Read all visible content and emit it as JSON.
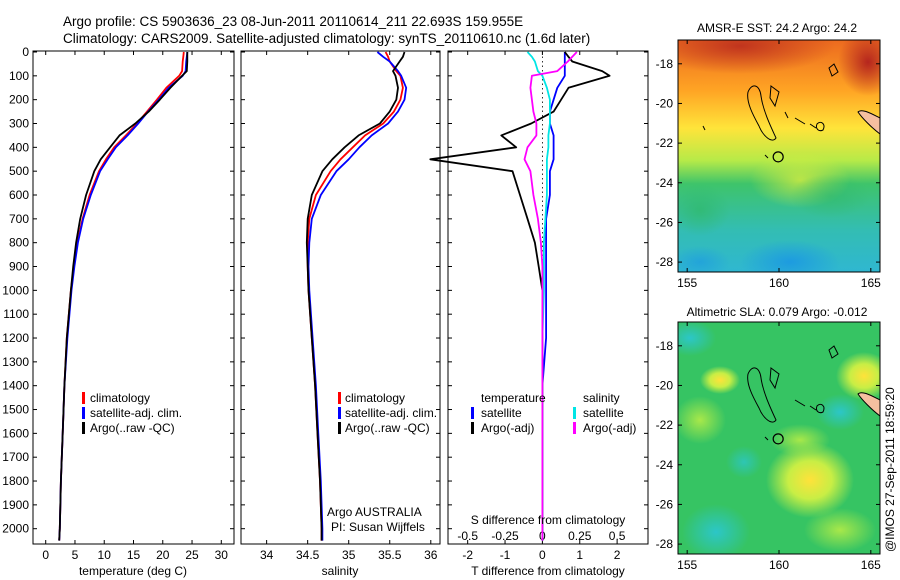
{
  "header": {
    "title_line1": "Argo profile: CS 5903636_23 08-Jun-2011 20110614_211 22.693S 159.955E",
    "title_line2": "Climatology: CARS2009. Satellite-adjusted climatology: synTS_20110610.nc (1.6d later)"
  },
  "footer": {
    "stamp": "@IMOS 27-Sep-2011 18:59:20"
  },
  "colors": {
    "red": "#ff0000",
    "blue": "#0000ff",
    "black": "#000000",
    "cyan": "#00e5e5",
    "magenta": "#ff00ff"
  },
  "chart_data": [
    {
      "id": "temperature",
      "type": "line",
      "xlabel": "temperature (deg C)",
      "xlim": [
        -2,
        32
      ],
      "xticks": [
        0,
        5,
        10,
        15,
        20,
        25,
        30
      ],
      "ylim": [
        0,
        2060
      ],
      "yticks": [
        0,
        100,
        200,
        300,
        400,
        500,
        600,
        700,
        800,
        900,
        1000,
        1100,
        1200,
        1300,
        1400,
        1500,
        1600,
        1700,
        1800,
        1900,
        2000
      ],
      "depths": [
        0,
        20,
        40,
        80,
        100,
        150,
        200,
        250,
        300,
        350,
        400,
        450,
        500,
        600,
        700,
        800,
        900,
        1000,
        1200,
        1400,
        1600,
        1800,
        2000,
        2050
      ],
      "series": [
        {
          "name": "climatology",
          "color": "#ff0000",
          "values": [
            23.6,
            23.5,
            23.4,
            23.3,
            22.8,
            20.6,
            19.0,
            17.3,
            15.6,
            13.7,
            11.7,
            10.3,
            9.1,
            7.5,
            6.3,
            5.4,
            4.8,
            4.3,
            3.6,
            3.2,
            2.9,
            2.6,
            2.4,
            2.3
          ]
        },
        {
          "name": "satellite-adj. clim.",
          "color": "#0000ff",
          "values": [
            24.2,
            24.1,
            24.0,
            23.9,
            23.4,
            21.0,
            19.3,
            17.5,
            15.8,
            14.0,
            12.0,
            10.6,
            9.3,
            7.7,
            6.4,
            5.5,
            4.9,
            4.4,
            3.7,
            3.2,
            2.9,
            2.6,
            2.4,
            2.3
          ]
        },
        {
          "name": "Argo(..raw -QC)",
          "color": "#000000",
          "values": [
            24.2,
            24.2,
            24.2,
            24.1,
            23.3,
            21.3,
            19.5,
            17.6,
            15.3,
            12.6,
            11.0,
            9.4,
            8.3,
            6.9,
            5.9,
            5.2,
            4.7,
            4.3,
            3.6,
            3.2,
            2.9,
            2.6,
            2.4,
            2.3
          ]
        }
      ],
      "legend": [
        "climatology",
        "satellite-adj. clim.",
        "Argo(..raw -QC)"
      ]
    },
    {
      "id": "salinity",
      "type": "line",
      "xlabel": "salinity",
      "xlim": [
        33.7,
        36.1
      ],
      "xticks": [
        34,
        34.5,
        35,
        35.5,
        36
      ],
      "xticklabels": [
        "34",
        "34.5",
        "35",
        "35.5",
        "36"
      ],
      "ylim": [
        0,
        2060
      ],
      "depths": [
        0,
        20,
        40,
        80,
        100,
        150,
        200,
        250,
        300,
        350,
        400,
        450,
        500,
        600,
        700,
        800,
        900,
        1000,
        1200,
        1400,
        1600,
        1800,
        2000,
        2050
      ],
      "series": [
        {
          "name": "climatology",
          "color": "#ff0000",
          "values": [
            35.45,
            35.48,
            35.5,
            35.58,
            35.63,
            35.66,
            35.63,
            35.55,
            35.42,
            35.2,
            35.05,
            34.9,
            34.78,
            34.6,
            34.52,
            34.5,
            34.5,
            34.51,
            34.55,
            34.59,
            34.62,
            34.65,
            34.67,
            34.67
          ]
        },
        {
          "name": "satellite-adj. clim.",
          "color": "#0000ff",
          "values": [
            35.35,
            35.42,
            35.5,
            35.6,
            35.64,
            35.7,
            35.68,
            35.6,
            35.48,
            35.28,
            35.13,
            35.0,
            34.85,
            34.66,
            34.55,
            34.52,
            34.51,
            34.52,
            34.56,
            34.6,
            34.63,
            34.66,
            34.68,
            34.68
          ]
        },
        {
          "name": "Argo(..raw -QC)",
          "color": "#000000",
          "values": [
            35.68,
            35.66,
            35.62,
            35.54,
            35.57,
            35.6,
            35.58,
            35.5,
            35.38,
            35.12,
            34.95,
            34.8,
            34.68,
            34.55,
            34.5,
            34.49,
            34.5,
            34.51,
            34.55,
            34.59,
            34.62,
            34.65,
            34.67,
            34.67
          ]
        }
      ],
      "legend": [
        "climatology",
        "satellite-adj. clim.",
        "Argo(..raw -QC)"
      ],
      "annotation_line1": "Argo AUSTRALIA",
      "annotation_line2": "PI: Susan Wijffels"
    },
    {
      "id": "difference",
      "type": "line",
      "xlabel_top": "S difference from climatology",
      "xlabel": "T difference from climatology",
      "xlim": [
        -2.5,
        2.8
      ],
      "xticks": [
        -2,
        -1,
        0,
        1,
        2
      ],
      "top_ticks": [
        -0.5,
        -0.25,
        0,
        0.25,
        0.5
      ],
      "top_ticklabels": [
        "-0.5",
        "-0.25",
        "0",
        "0.25",
        "0.5"
      ],
      "ylim": [
        0,
        2060
      ],
      "depths": [
        0,
        20,
        40,
        80,
        100,
        150,
        200,
        250,
        300,
        350,
        400,
        450,
        500,
        600,
        700,
        800,
        900,
        1000,
        1200,
        1400,
        1600,
        1800,
        2000,
        2050
      ],
      "series": [
        {
          "name": "temperature satellite",
          "color": "#0000ff",
          "values": [
            0.6,
            0.6,
            0.6,
            0.6,
            0.6,
            0.4,
            0.3,
            0.2,
            0.2,
            0.3,
            0.3,
            0.3,
            0.2,
            0.2,
            0.1,
            0.1,
            0.1,
            0.1,
            0.1,
            0.0,
            0.0,
            0.0,
            0.0,
            0.0
          ]
        },
        {
          "name": "temperature Argo(-adj)",
          "color": "#000000",
          "values": [
            0.6,
            0.7,
            0.8,
            1.6,
            1.8,
            0.7,
            0.5,
            0.3,
            -0.3,
            -1.1,
            -0.7,
            -3.0,
            -0.8,
            -0.6,
            -0.4,
            -0.2,
            -0.1,
            0.0,
            0.0,
            0.0,
            0.0,
            0.0,
            0.0,
            0.0
          ]
        },
        {
          "name": "salinity satellite",
          "color": "#00e5e5",
          "values": [
            -0.1,
            -0.07,
            -0.05,
            -0.03,
            0.0,
            0.03,
            0.05,
            0.05,
            0.05,
            0.04,
            0.04,
            0.03,
            0.03,
            0.03,
            0.02,
            0.01,
            0.01,
            0.01,
            0.0,
            0.0,
            0.0,
            0.0,
            0.0,
            0.0
          ]
        },
        {
          "name": "salinity Argo(-adj)",
          "color": "#ff00ff",
          "values": [
            0.23,
            0.2,
            0.17,
            0.1,
            -0.07,
            -0.08,
            -0.07,
            -0.06,
            -0.04,
            -0.04,
            -0.1,
            -0.12,
            -0.08,
            -0.06,
            -0.03,
            -0.01,
            0.0,
            0.0,
            0.0,
            0.0,
            0.0,
            0.0,
            0.0,
            0.0
          ]
        }
      ],
      "legend_header_left": "temperature",
      "legend_header_right": "salinity",
      "legend_left": [
        "satellite",
        "Argo(-adj)"
      ],
      "legend_right": [
        "satellite",
        "Argo(-adj)"
      ]
    },
    {
      "id": "sst_map",
      "type": "heatmap",
      "title": "AMSR-E SST: 24.2  Argo: 24.2",
      "xlim": [
        154.5,
        165.5
      ],
      "ylim": [
        -28.5,
        -16.8
      ],
      "xticks": [
        155,
        160,
        165
      ],
      "yticks": [
        -18,
        -20,
        -22,
        -24,
        -26,
        -28
      ],
      "profile_location": {
        "lon": 159.955,
        "lat": -22.693
      },
      "color_scale": [
        "#1565c0",
        "#1ecbe1",
        "#33cc66",
        "#8fe04a",
        "#d4f03a",
        "#ffd633",
        "#ff9a1f",
        "#e2581b",
        "#b22222"
      ]
    },
    {
      "id": "sla_map",
      "type": "heatmap",
      "title": "Altimetric SLA: 0.079  Argo: -0.012",
      "xlim": [
        154.5,
        165.5
      ],
      "ylim": [
        -28.5,
        -16.8
      ],
      "xticks": [
        155,
        160,
        165
      ],
      "yticks": [
        -18,
        -20,
        -22,
        -24,
        -26,
        -28
      ],
      "profile_location": {
        "lon": 159.955,
        "lat": -22.693
      },
      "color_scale": [
        "#1ecbe1",
        "#33cc66",
        "#8fe04a",
        "#d4f03a",
        "#ffd633"
      ]
    }
  ]
}
